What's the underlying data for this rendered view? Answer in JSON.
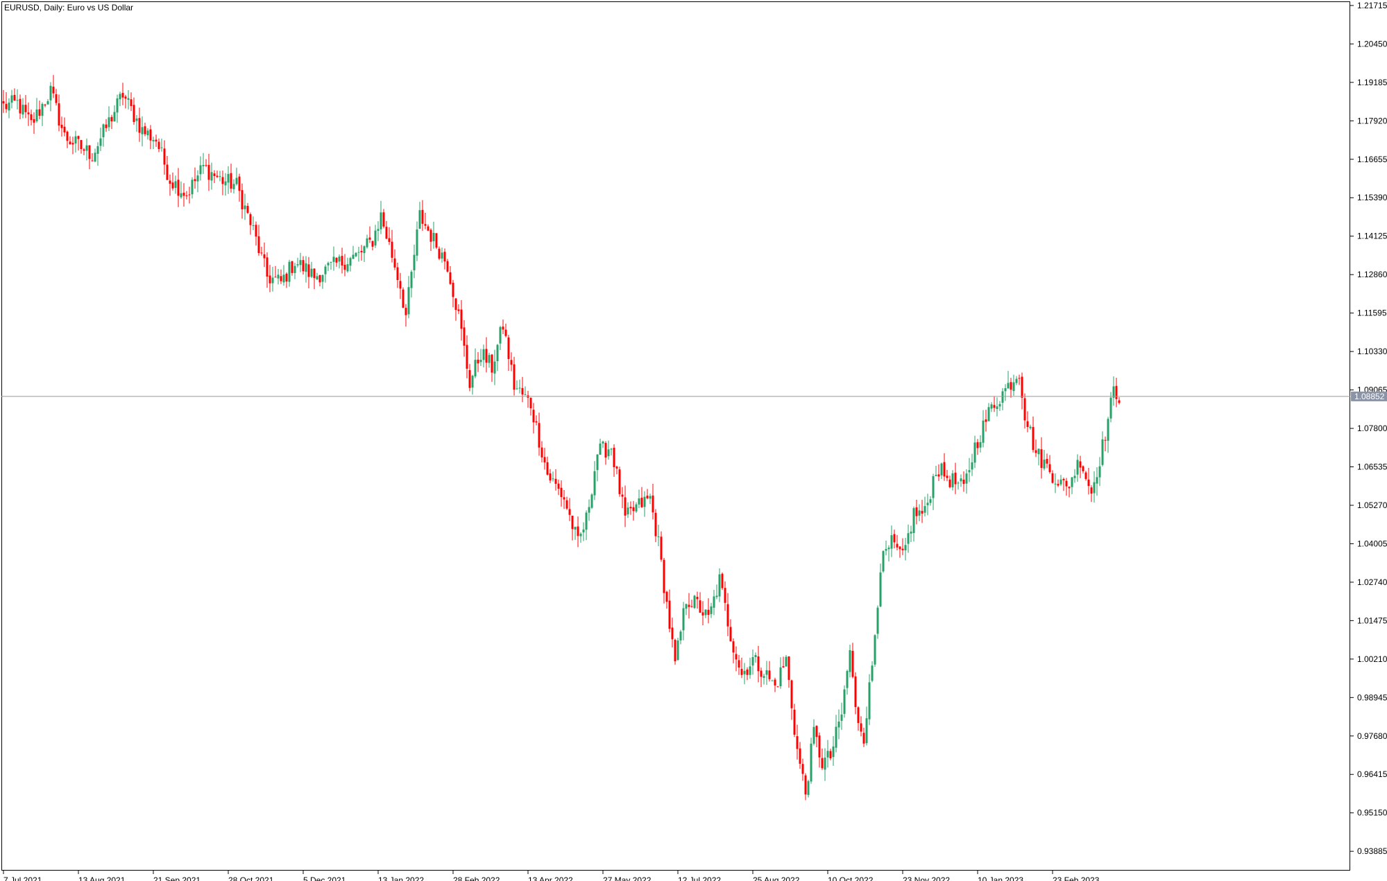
{
  "window": {
    "title": "EURUSD, Daily:  Euro vs US Dollar"
  },
  "colors": {
    "bull": "#26a269",
    "bear": "#ff0000",
    "grid_line": "#999999",
    "current_price_bg": "#8a94a6",
    "current_price_text": "#ffffff",
    "frame": "#000000"
  },
  "chart_data": {
    "type": "candlestick",
    "symbol": "EURUSD",
    "timeframe": "Daily",
    "ylim": [
      0.9325,
      1.2185
    ],
    "current_price": 1.08852,
    "current_price_label": "1.08852",
    "y_ticks": [
      1.21715,
      1.2045,
      1.19185,
      1.1792,
      1.16655,
      1.1539,
      1.14125,
      1.1286,
      1.11595,
      1.1033,
      1.09065,
      1.078,
      1.06535,
      1.0527,
      1.04005,
      1.0274,
      1.01475,
      1.0021,
      0.98945,
      0.9768,
      0.96415,
      0.9515,
      0.93885
    ],
    "y_tick_labels": [
      "1.21715",
      "1.20450",
      "1.19185",
      "1.17920",
      "1.16655",
      "1.15390",
      "1.14125",
      "1.12860",
      "1.11595",
      "1.10330",
      "1.09065",
      "1.07800",
      "1.06535",
      "1.05270",
      "1.04005",
      "1.02740",
      "1.01475",
      "1.00210",
      "0.98945",
      "0.97680",
      "0.96415",
      "0.95150",
      "0.93885"
    ],
    "x_labels": [
      "7 Jul 2021",
      "13 Aug 2021",
      "21 Sep 2021",
      "28 Oct 2021",
      "5 Dec 2021",
      "13 Jan 2022",
      "28 Feb 2022",
      "13 Apr 2022",
      "27 May 2022",
      "12 Jul 2022",
      "25 Aug 2022",
      "10 Oct 2022",
      "23 Nov 2022",
      "10 Jan 2023",
      "23 Feb 2023"
    ],
    "x_label_index": [
      0,
      27,
      54,
      81,
      108,
      135,
      162,
      189,
      216,
      243,
      270,
      297,
      324,
      351,
      378
    ],
    "trajectory": [
      [
        0,
        1.184
      ],
      [
        5,
        1.185
      ],
      [
        10,
        1.178
      ],
      [
        17,
        1.189
      ],
      [
        22,
        1.174
      ],
      [
        32,
        1.168
      ],
      [
        37,
        1.177
      ],
      [
        43,
        1.188
      ],
      [
        50,
        1.176
      ],
      [
        55,
        1.173
      ],
      [
        60,
        1.16
      ],
      [
        66,
        1.155
      ],
      [
        72,
        1.164
      ],
      [
        78,
        1.16
      ],
      [
        84,
        1.158
      ],
      [
        90,
        1.143
      ],
      [
        95,
        1.128
      ],
      [
        100,
        1.126
      ],
      [
        105,
        1.133
      ],
      [
        112,
        1.128
      ],
      [
        120,
        1.132
      ],
      [
        128,
        1.135
      ],
      [
        133,
        1.14
      ],
      [
        136,
        1.148
      ],
      [
        140,
        1.135
      ],
      [
        143,
        1.125
      ],
      [
        145,
        1.115
      ],
      [
        148,
        1.135
      ],
      [
        150,
        1.148
      ],
      [
        155,
        1.14
      ],
      [
        160,
        1.132
      ],
      [
        164,
        1.115
      ],
      [
        168,
        1.093
      ],
      [
        172,
        1.103
      ],
      [
        176,
        1.098
      ],
      [
        180,
        1.112
      ],
      [
        184,
        1.092
      ],
      [
        190,
        1.086
      ],
      [
        196,
        1.063
      ],
      [
        202,
        1.055
      ],
      [
        207,
        1.04
      ],
      [
        210,
        1.048
      ],
      [
        214,
        1.07
      ],
      [
        219,
        1.072
      ],
      [
        224,
        1.048
      ],
      [
        228,
        1.052
      ],
      [
        233,
        1.055
      ],
      [
        236,
        1.04
      ],
      [
        239,
        1.02
      ],
      [
        242,
        1.0
      ],
      [
        246,
        1.022
      ],
      [
        250,
        1.02
      ],
      [
        254,
        1.015
      ],
      [
        258,
        1.028
      ],
      [
        262,
        1.01
      ],
      [
        266,
        0.997
      ],
      [
        270,
        1.002
      ],
      [
        274,
        0.998
      ],
      [
        278,
        0.993
      ],
      [
        282,
        1.002
      ],
      [
        286,
        0.972
      ],
      [
        289,
        0.958
      ],
      [
        292,
        0.978
      ],
      [
        295,
        0.968
      ],
      [
        298,
        0.97
      ],
      [
        302,
        0.984
      ],
      [
        305,
        1.005
      ],
      [
        307,
        0.985
      ],
      [
        310,
        0.977
      ],
      [
        313,
        1.0
      ],
      [
        316,
        1.033
      ],
      [
        320,
        1.04
      ],
      [
        324,
        1.035
      ],
      [
        328,
        1.05
      ],
      [
        332,
        1.05
      ],
      [
        336,
        1.065
      ],
      [
        340,
        1.062
      ],
      [
        346,
        1.058
      ],
      [
        350,
        1.072
      ],
      [
        356,
        1.085
      ],
      [
        362,
        1.092
      ],
      [
        366,
        1.097
      ],
      [
        368,
        1.083
      ],
      [
        372,
        1.07
      ],
      [
        378,
        1.063
      ],
      [
        383,
        1.058
      ],
      [
        388,
        1.068
      ],
      [
        392,
        1.057
      ],
      [
        396,
        1.072
      ],
      [
        400,
        1.09
      ],
      [
        402,
        1.089
      ]
    ]
  }
}
